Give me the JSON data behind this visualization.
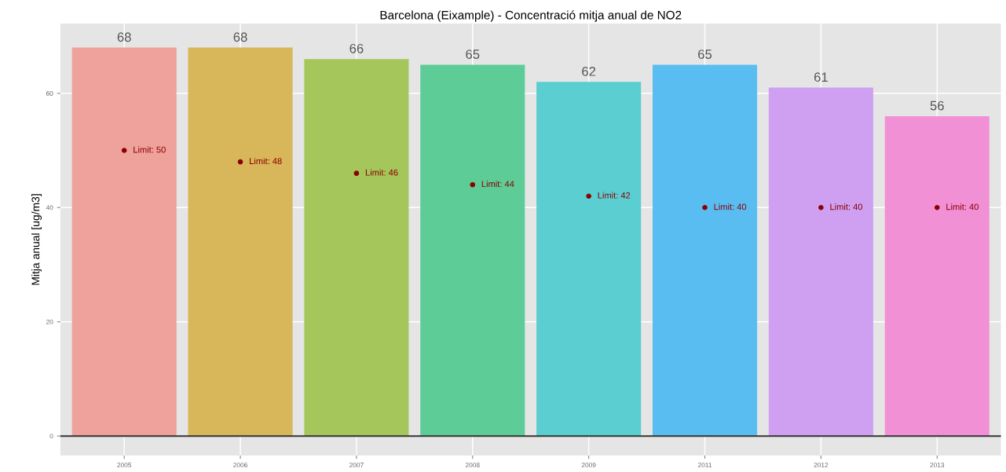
{
  "chart_data": {
    "type": "bar",
    "title": "Barcelona (Eixample) - Concentració mitja anual de NO2",
    "ylabel": "Mitja anual [ug/m3]",
    "categories": [
      "2005",
      "2006",
      "2007",
      "2008",
      "2009",
      "2011",
      "2012",
      "2013"
    ],
    "series": [
      {
        "colors": [
          "#efa19c",
          "#d8b65a",
          "#a4c65a",
          "#5dcc96",
          "#5aced0",
          "#5abdf2",
          "#cfa0f2",
          "#f290d6"
        ],
        "values": [
          68,
          68,
          66,
          65,
          62,
          65,
          61,
          56
        ],
        "data_labels": true
      },
      {
        "type": "scatter",
        "color": "#8b0000",
        "values": [
          50,
          48,
          46,
          44,
          42,
          40,
          40,
          40
        ],
        "value_labels": [
          "Limit: 50",
          "Limit: 48",
          "Limit: 46",
          "Limit: 44",
          "Limit: 42",
          "Limit: 40",
          "Limit: 40",
          "Limit: 40"
        ],
        "marker": "circle"
      }
    ],
    "ylim": [
      -3.4,
      72.2
    ],
    "yticks": [
      0,
      20,
      40,
      60
    ],
    "grid": true,
    "ref_lines": [
      {
        "axis": "y",
        "value": 0,
        "color": "#333333"
      }
    ]
  }
}
